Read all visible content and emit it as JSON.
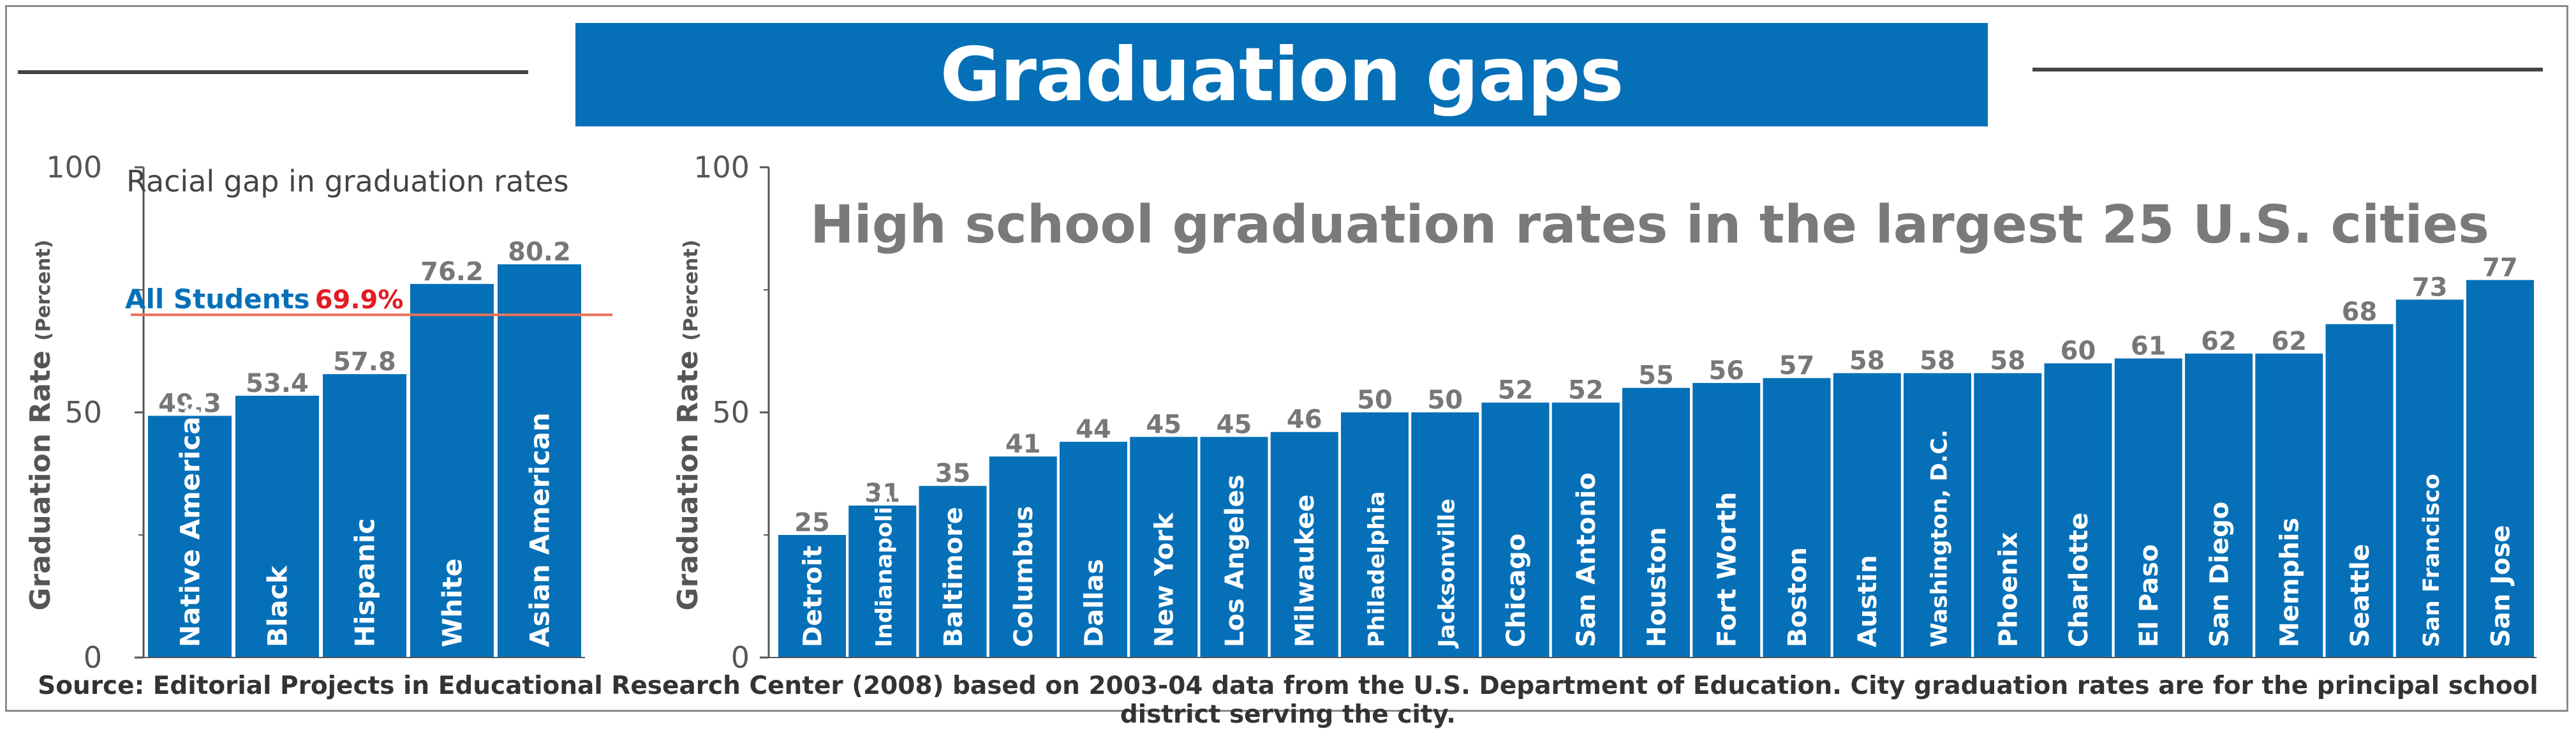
{
  "header": {
    "title": "Graduation gaps"
  },
  "footer": {
    "source": "Source: Editorial Projects in Educational Research Center (2008) based on 2003-04 data from the U.S. Department of Education. City graduation rates are for the principal school district serving the city."
  },
  "colors": {
    "bar": "#0570b8",
    "reference_line": "#e8735a",
    "reference_value": "#e31b23",
    "value_label": "#777777",
    "axis": "#555555"
  },
  "chart_data": [
    {
      "type": "bar",
      "title": "Racial gap in graduation rates",
      "ylabel": "Graduation Rate",
      "ylabel_unit": "(Percent)",
      "ylim": [
        0,
        100
      ],
      "yticks": [
        0,
        50,
        100
      ],
      "categories": [
        "Native American",
        "Black",
        "Hispanic",
        "White",
        "Asian American"
      ],
      "values": [
        49.3,
        53.4,
        57.8,
        76.2,
        80.2
      ],
      "value_labels": [
        "49.3",
        "53.4",
        "57.8",
        "76.2",
        "80.2"
      ],
      "reference": {
        "label": "All Students",
        "value": 69.9,
        "value_label": "69.9%"
      }
    },
    {
      "type": "bar",
      "title": "High school graduation rates in the largest 25 U.S. cities",
      "ylabel": "Graduation Rate",
      "ylabel_unit": "(Percent)",
      "ylim": [
        0,
        100
      ],
      "yticks": [
        0,
        50,
        100
      ],
      "categories": [
        "Detroit",
        "Indianapolis",
        "Baltimore",
        "Columbus",
        "Dallas",
        "New York",
        "Los Angeles",
        "Milwaukee",
        "Philadelphia",
        "Jacksonville",
        "Chicago",
        "San Antonio",
        "Houston",
        "Fort Worth",
        "Boston",
        "Austin",
        "Washington, D.C.",
        "Phoenix",
        "Charlotte",
        "El Paso",
        "San Diego",
        "Memphis",
        "Seattle",
        "San Francisco",
        "San Jose"
      ],
      "values": [
        25,
        31,
        35,
        41,
        44,
        45,
        45,
        46,
        50,
        50,
        52,
        52,
        55,
        56,
        57,
        58,
        58,
        58,
        60,
        61,
        62,
        62,
        68,
        73,
        77
      ],
      "value_labels": [
        "25",
        "31",
        "35",
        "41",
        "44",
        "45",
        "45",
        "46",
        "50",
        "50",
        "52",
        "52",
        "55",
        "56",
        "57",
        "58",
        "58",
        "58",
        "60",
        "61",
        "62",
        "62",
        "68",
        "73",
        "77"
      ]
    }
  ]
}
